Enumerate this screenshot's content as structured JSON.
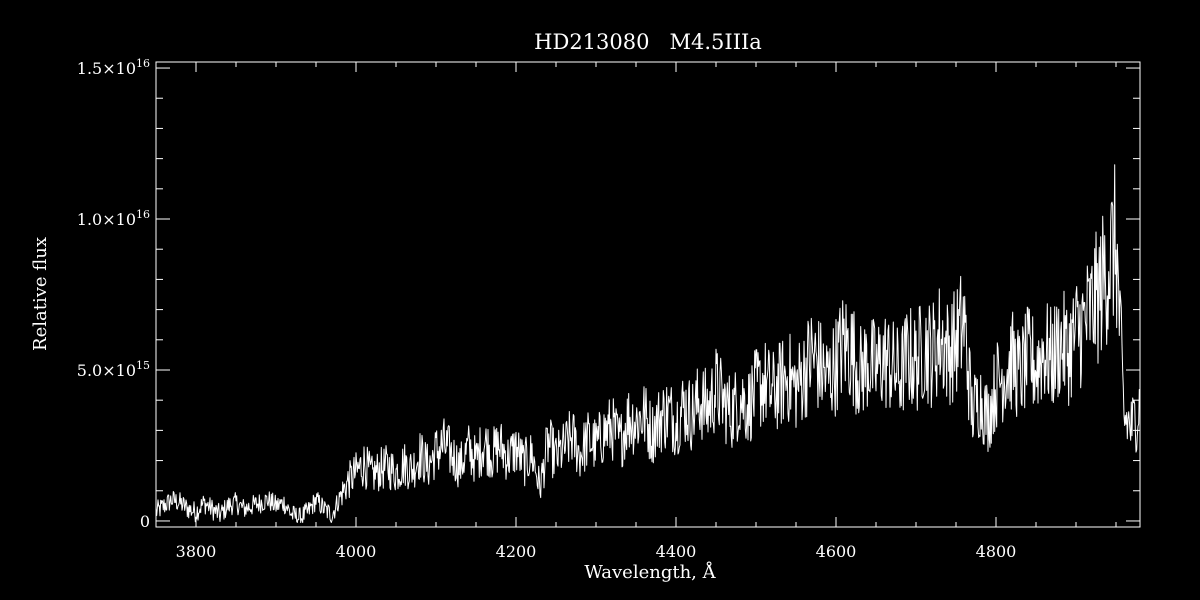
{
  "colors": {
    "background": "#000000",
    "foreground": "#ffffff"
  },
  "chart_data": {
    "type": "line",
    "title": "HD213080   M4.5IIIa",
    "xlabel": "Wavelength, Å",
    "ylabel": "Relative flux",
    "xlim": [
      3750,
      4980
    ],
    "ylim": [
      -200000000000000.0,
      1.52e+16
    ],
    "x_ticks": [
      {
        "value": 3800,
        "label": "3800"
      },
      {
        "value": 4000,
        "label": "4000"
      },
      {
        "value": 4200,
        "label": "4200"
      },
      {
        "value": 4400,
        "label": "4400"
      },
      {
        "value": 4600,
        "label": "4600"
      },
      {
        "value": 4800,
        "label": "4800"
      }
    ],
    "y_ticks": [
      {
        "value": 0,
        "mantissa": "0",
        "exponent": ""
      },
      {
        "value": 5000000000000000.0,
        "mantissa": "5.0×10",
        "exponent": "15"
      },
      {
        "value": 1e+16,
        "mantissa": "1.0×10",
        "exponent": "16"
      },
      {
        "value": 1.5e+16,
        "mantissa": "1.5×10",
        "exponent": "16"
      }
    ],
    "series": [
      {
        "color": "#ffffff",
        "x": [
          3750,
          3760,
          3770,
          3780,
          3790,
          3800,
          3810,
          3820,
          3830,
          3840,
          3850,
          3860,
          3870,
          3880,
          3890,
          3900,
          3910,
          3920,
          3930,
          3940,
          3950,
          3960,
          3970,
          3980,
          3990,
          4000,
          4010,
          4020,
          4030,
          4040,
          4050,
          4060,
          4070,
          4080,
          4090,
          4100,
          4110,
          4120,
          4130,
          4140,
          4150,
          4160,
          4170,
          4180,
          4190,
          4200,
          4210,
          4220,
          4230,
          4240,
          4250,
          4260,
          4270,
          4280,
          4290,
          4300,
          4310,
          4320,
          4330,
          4340,
          4350,
          4360,
          4370,
          4380,
          4390,
          4400,
          4410,
          4420,
          4430,
          4440,
          4450,
          4460,
          4470,
          4480,
          4490,
          4500,
          4510,
          4520,
          4530,
          4540,
          4550,
          4560,
          4570,
          4580,
          4590,
          4600,
          4610,
          4620,
          4630,
          4640,
          4650,
          4660,
          4670,
          4680,
          4690,
          4700,
          4710,
          4720,
          4730,
          4740,
          4750,
          4760,
          4770,
          4780,
          4790,
          4800,
          4810,
          4820,
          4830,
          4840,
          4850,
          4860,
          4870,
          4880,
          4890,
          4900,
          4910,
          4920,
          4930,
          4940,
          4950,
          4960,
          4970,
          4980
        ],
        "y": [
          300000000000000.0,
          500000000000000.0,
          700000000000000.0,
          600000000000000.0,
          400000000000000.0,
          300000000000000.0,
          600000000000000.0,
          400000000000000.0,
          200000000000000.0,
          500000000000000.0,
          600000000000000.0,
          400000000000000.0,
          500000000000000.0,
          600000000000000.0,
          700000000000000.0,
          500000000000000.0,
          600000000000000.0,
          200000000000000.0,
          100000000000000.0,
          300000000000000.0,
          700000000000000.0,
          400000000000000.0,
          200000000000000.0,
          800000000000000.0,
          1300000000000000.0,
          1600000000000000.0,
          1900000000000000.0,
          1500000000000000.0,
          1700000000000000.0,
          1800000000000000.0,
          1600000000000000.0,
          1900000000000000.0,
          1700000000000000.0,
          2200000000000000.0,
          1800000000000000.0,
          2300000000000000.0,
          2500000000000000.0,
          2200000000000000.0,
          1800000000000000.0,
          2400000000000000.0,
          2000000000000000.0,
          2600000000000000.0,
          2200000000000000.0,
          2500000000000000.0,
          2100000000000000.0,
          2400000000000000.0,
          1900000000000000.0,
          2200000000000000.0,
          1100000000000000.0,
          2600000000000000.0,
          2100000000000000.0,
          2400000000000000.0,
          2800000000000000.0,
          2200000000000000.0,
          2700000000000000.0,
          2500000000000000.0,
          2900000000000000.0,
          3100000000000000.0,
          2600000000000000.0,
          3400000000000000.0,
          3300000000000000.0,
          3500000000000000.0,
          2900000000000000.0,
          3400000000000000.0,
          3600000000000000.0,
          3300000000000000.0,
          3800000000000000.0,
          3500000000000000.0,
          4000000000000000.0,
          3700000000000000.0,
          4400000000000000.0,
          3900000000000000.0,
          3600000000000000.0,
          4100000000000000.0,
          3800000000000000.0,
          4300000000000000.0,
          4600000000000000.0,
          4200000000000000.0,
          4500000000000000.0,
          4800000000000000.0,
          4400000000000000.0,
          4900000000000000.0,
          5500000000000000.0,
          5100000000000000.0,
          4700000000000000.0,
          5200000000000000.0,
          5900000000000000.0,
          5600000000000000.0,
          4900000000000000.0,
          5300000000000000.0,
          5000000000000000.0,
          5400000000000000.0,
          5100000000000000.0,
          4800000000000000.0,
          5500000000000000.0,
          5200000000000000.0,
          5800000000000000.0,
          5500000000000000.0,
          6100000000000000.0,
          5600000000000000.0,
          5900000000000000.0,
          6600000000000000.0,
          3600000000000000.0,
          4100000000000000.0,
          3400000000000000.0,
          4500000000000000.0,
          4900000000000000.0,
          5300000000000000.0,
          4800000000000000.0,
          5400000000000000.0,
          5100000000000000.0,
          5700000000000000.0,
          5300000000000000.0,
          5900000000000000.0,
          5600000000000000.0,
          6200000000000000.0,
          6500000000000000.0,
          7000000000000000.0,
          7600000000000000.0,
          8500000000000000.0,
          9200000000000000.0,
          3400000000000000.0,
          3100000000000000.0,
          3900000000000000.0
        ]
      }
    ],
    "grid": false,
    "legend": "none"
  }
}
